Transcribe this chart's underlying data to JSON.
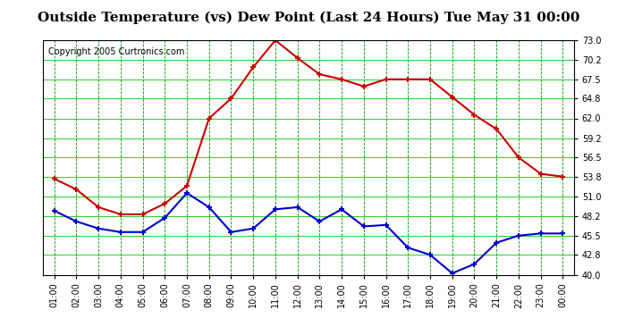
{
  "title": "Outside Temperature (vs) Dew Point (Last 24 Hours) Tue May 31 00:00",
  "copyright": "Copyright 2005 Curtronics.com",
  "x_labels": [
    "01:00",
    "02:00",
    "03:00",
    "04:00",
    "05:00",
    "06:00",
    "07:00",
    "08:00",
    "09:00",
    "10:00",
    "11:00",
    "12:00",
    "13:00",
    "14:00",
    "15:00",
    "16:00",
    "17:00",
    "18:00",
    "19:00",
    "20:00",
    "21:00",
    "22:00",
    "23:00",
    "00:00"
  ],
  "temp_values": [
    53.5,
    52.0,
    49.5,
    48.5,
    48.5,
    50.0,
    52.5,
    62.0,
    64.8,
    69.2,
    73.0,
    70.5,
    68.2,
    67.5,
    66.5,
    67.5,
    67.5,
    67.5,
    65.0,
    62.5,
    60.5,
    56.5,
    54.2,
    53.8
  ],
  "dew_values": [
    49.0,
    47.5,
    46.5,
    46.0,
    46.0,
    48.0,
    51.5,
    49.5,
    46.0,
    46.5,
    49.2,
    49.5,
    47.5,
    49.2,
    46.8,
    47.0,
    43.8,
    42.8,
    40.2,
    41.5,
    44.5,
    45.5,
    45.8,
    45.8
  ],
  "temp_color": "#cc0000",
  "dew_color": "#0000cc",
  "grid_color": "#00cc00",
  "dashed_grid_color": "#009900",
  "bg_color": "#ffffff",
  "plot_bg_color": "#ffffff",
  "title_bg_color": "#ffffff",
  "y_ticks": [
    40.0,
    42.8,
    45.5,
    48.2,
    51.0,
    53.8,
    56.5,
    59.2,
    62.0,
    64.8,
    67.5,
    70.2,
    73.0
  ],
  "y_min": 40.0,
  "y_max": 73.0
}
